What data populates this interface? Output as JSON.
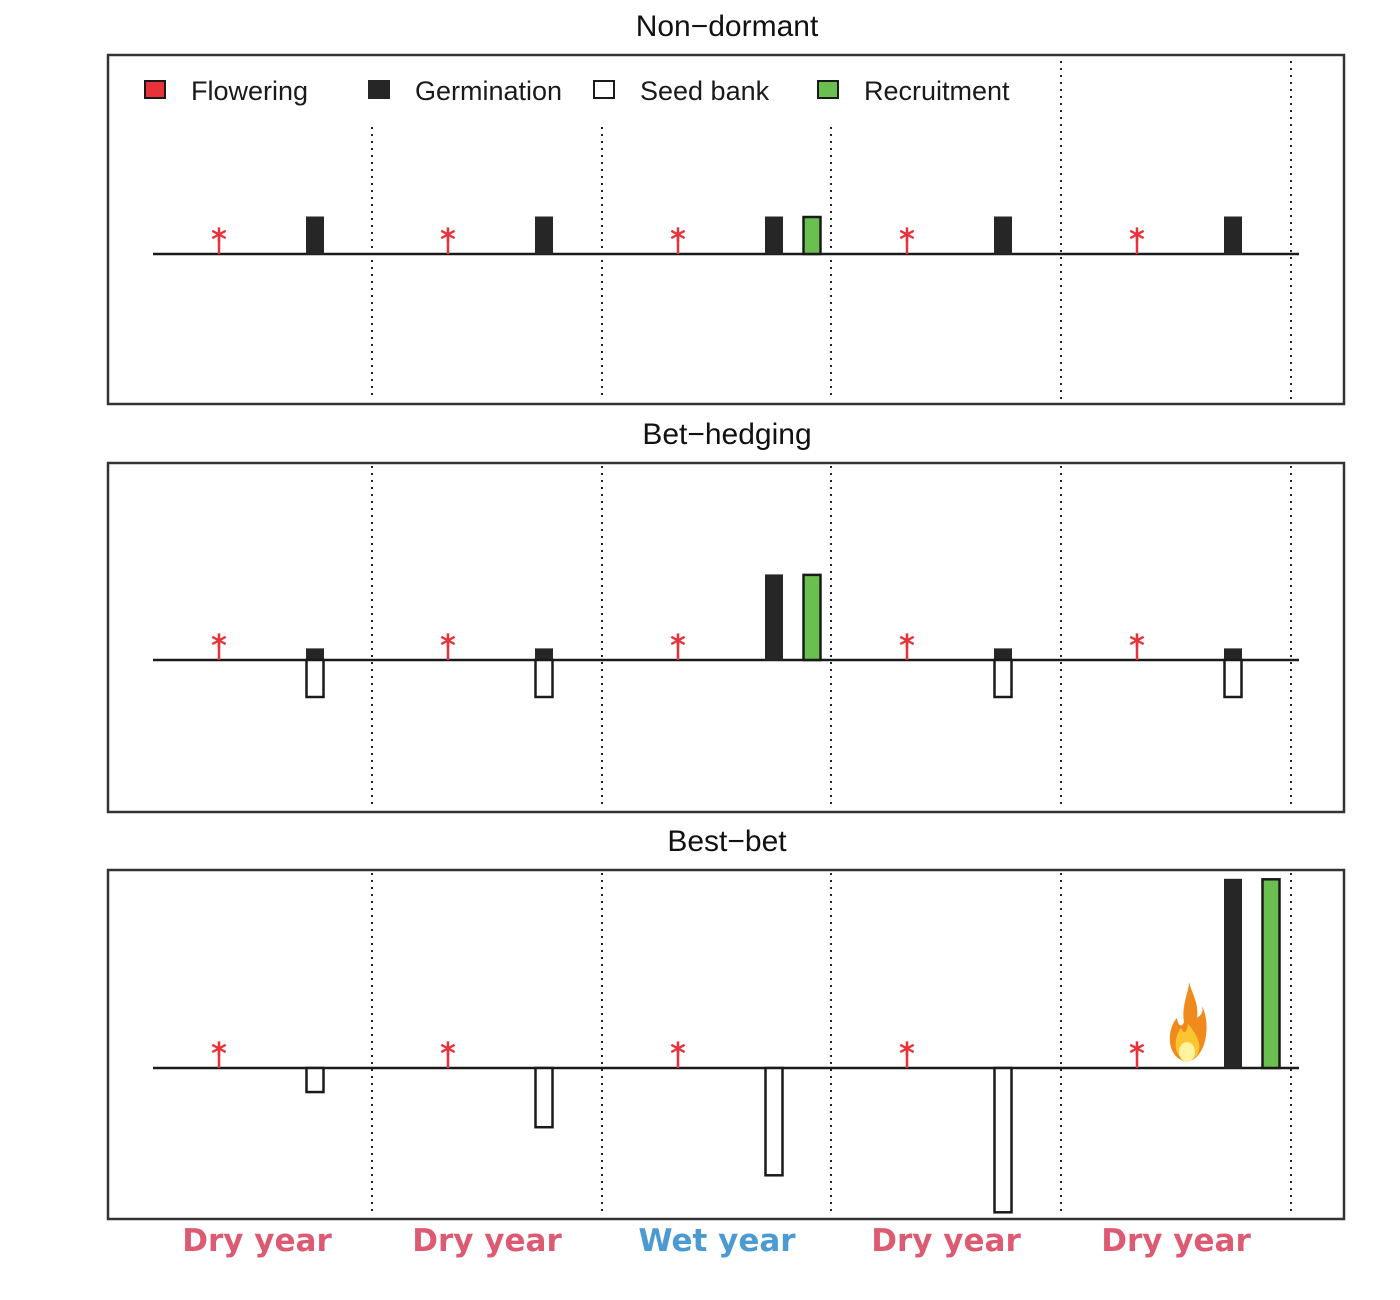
{
  "legend": [
    {
      "label": "Flowering",
      "swatch": "#e8323a",
      "border": "#1a1a1a"
    },
    {
      "label": "Germination",
      "swatch": "#262626",
      "border": "#262626"
    },
    {
      "label": "Seed bank",
      "swatch": "#ffffff",
      "border": "#1a1a1a"
    },
    {
      "label": "Recruitment",
      "swatch": "#6bbf4f",
      "border": "#1a1a1a"
    }
  ],
  "colors": {
    "flowering": "#e8323a",
    "germination": "#262626",
    "seed_bank": "#ffffff",
    "recruitment": "#6bbf4f",
    "dry_year": "#dd5a73",
    "wet_year": "#4b9ad2",
    "frame": "#333333"
  },
  "panels": [
    {
      "title": "Non−dormant",
      "has_legend": true,
      "years": [
        {
          "germination": 1,
          "seed_bank": 0,
          "recruitment": 0
        },
        {
          "germination": 1,
          "seed_bank": 0,
          "recruitment": 0
        },
        {
          "germination": 1,
          "seed_bank": 0,
          "recruitment": 1
        },
        {
          "germination": 1,
          "seed_bank": 0,
          "recruitment": 0
        },
        {
          "germination": 1,
          "seed_bank": 0,
          "recruitment": 0
        }
      ]
    },
    {
      "title": "Bet−hedging",
      "has_legend": false,
      "years": [
        {
          "germination": 0.3,
          "seed_bank": 1,
          "recruitment": 0
        },
        {
          "germination": 0.3,
          "seed_bank": 1,
          "recruitment": 0
        },
        {
          "germination": 2.3,
          "seed_bank": 0,
          "recruitment": 2.3
        },
        {
          "germination": 0.3,
          "seed_bank": 1,
          "recruitment": 0
        },
        {
          "germination": 0.3,
          "seed_bank": 1,
          "recruitment": 0
        }
      ]
    },
    {
      "title": "Best−bet",
      "has_legend": false,
      "years": [
        {
          "germination": 0,
          "seed_bank": 0.65,
          "recruitment": 0,
          "fire": false
        },
        {
          "germination": 0,
          "seed_bank": 1.6,
          "recruitment": 0,
          "fire": false
        },
        {
          "germination": 0,
          "seed_bank": 2.9,
          "recruitment": 0,
          "fire": false
        },
        {
          "germination": 0,
          "seed_bank": 3.9,
          "recruitment": 0,
          "fire": false
        },
        {
          "germination": 5.1,
          "seed_bank": 0,
          "recruitment": 5.1,
          "fire": true
        }
      ]
    }
  ],
  "year_labels": [
    {
      "label": "Dry year",
      "type": "dry"
    },
    {
      "label": "Dry year",
      "type": "dry"
    },
    {
      "label": "Wet year",
      "type": "wet"
    },
    {
      "label": "Dry year",
      "type": "dry"
    },
    {
      "label": "Dry year",
      "type": "dry"
    }
  ],
  "icons": {
    "flowering_marker": "asterisk-stem-icon",
    "fire": "fire-icon"
  }
}
